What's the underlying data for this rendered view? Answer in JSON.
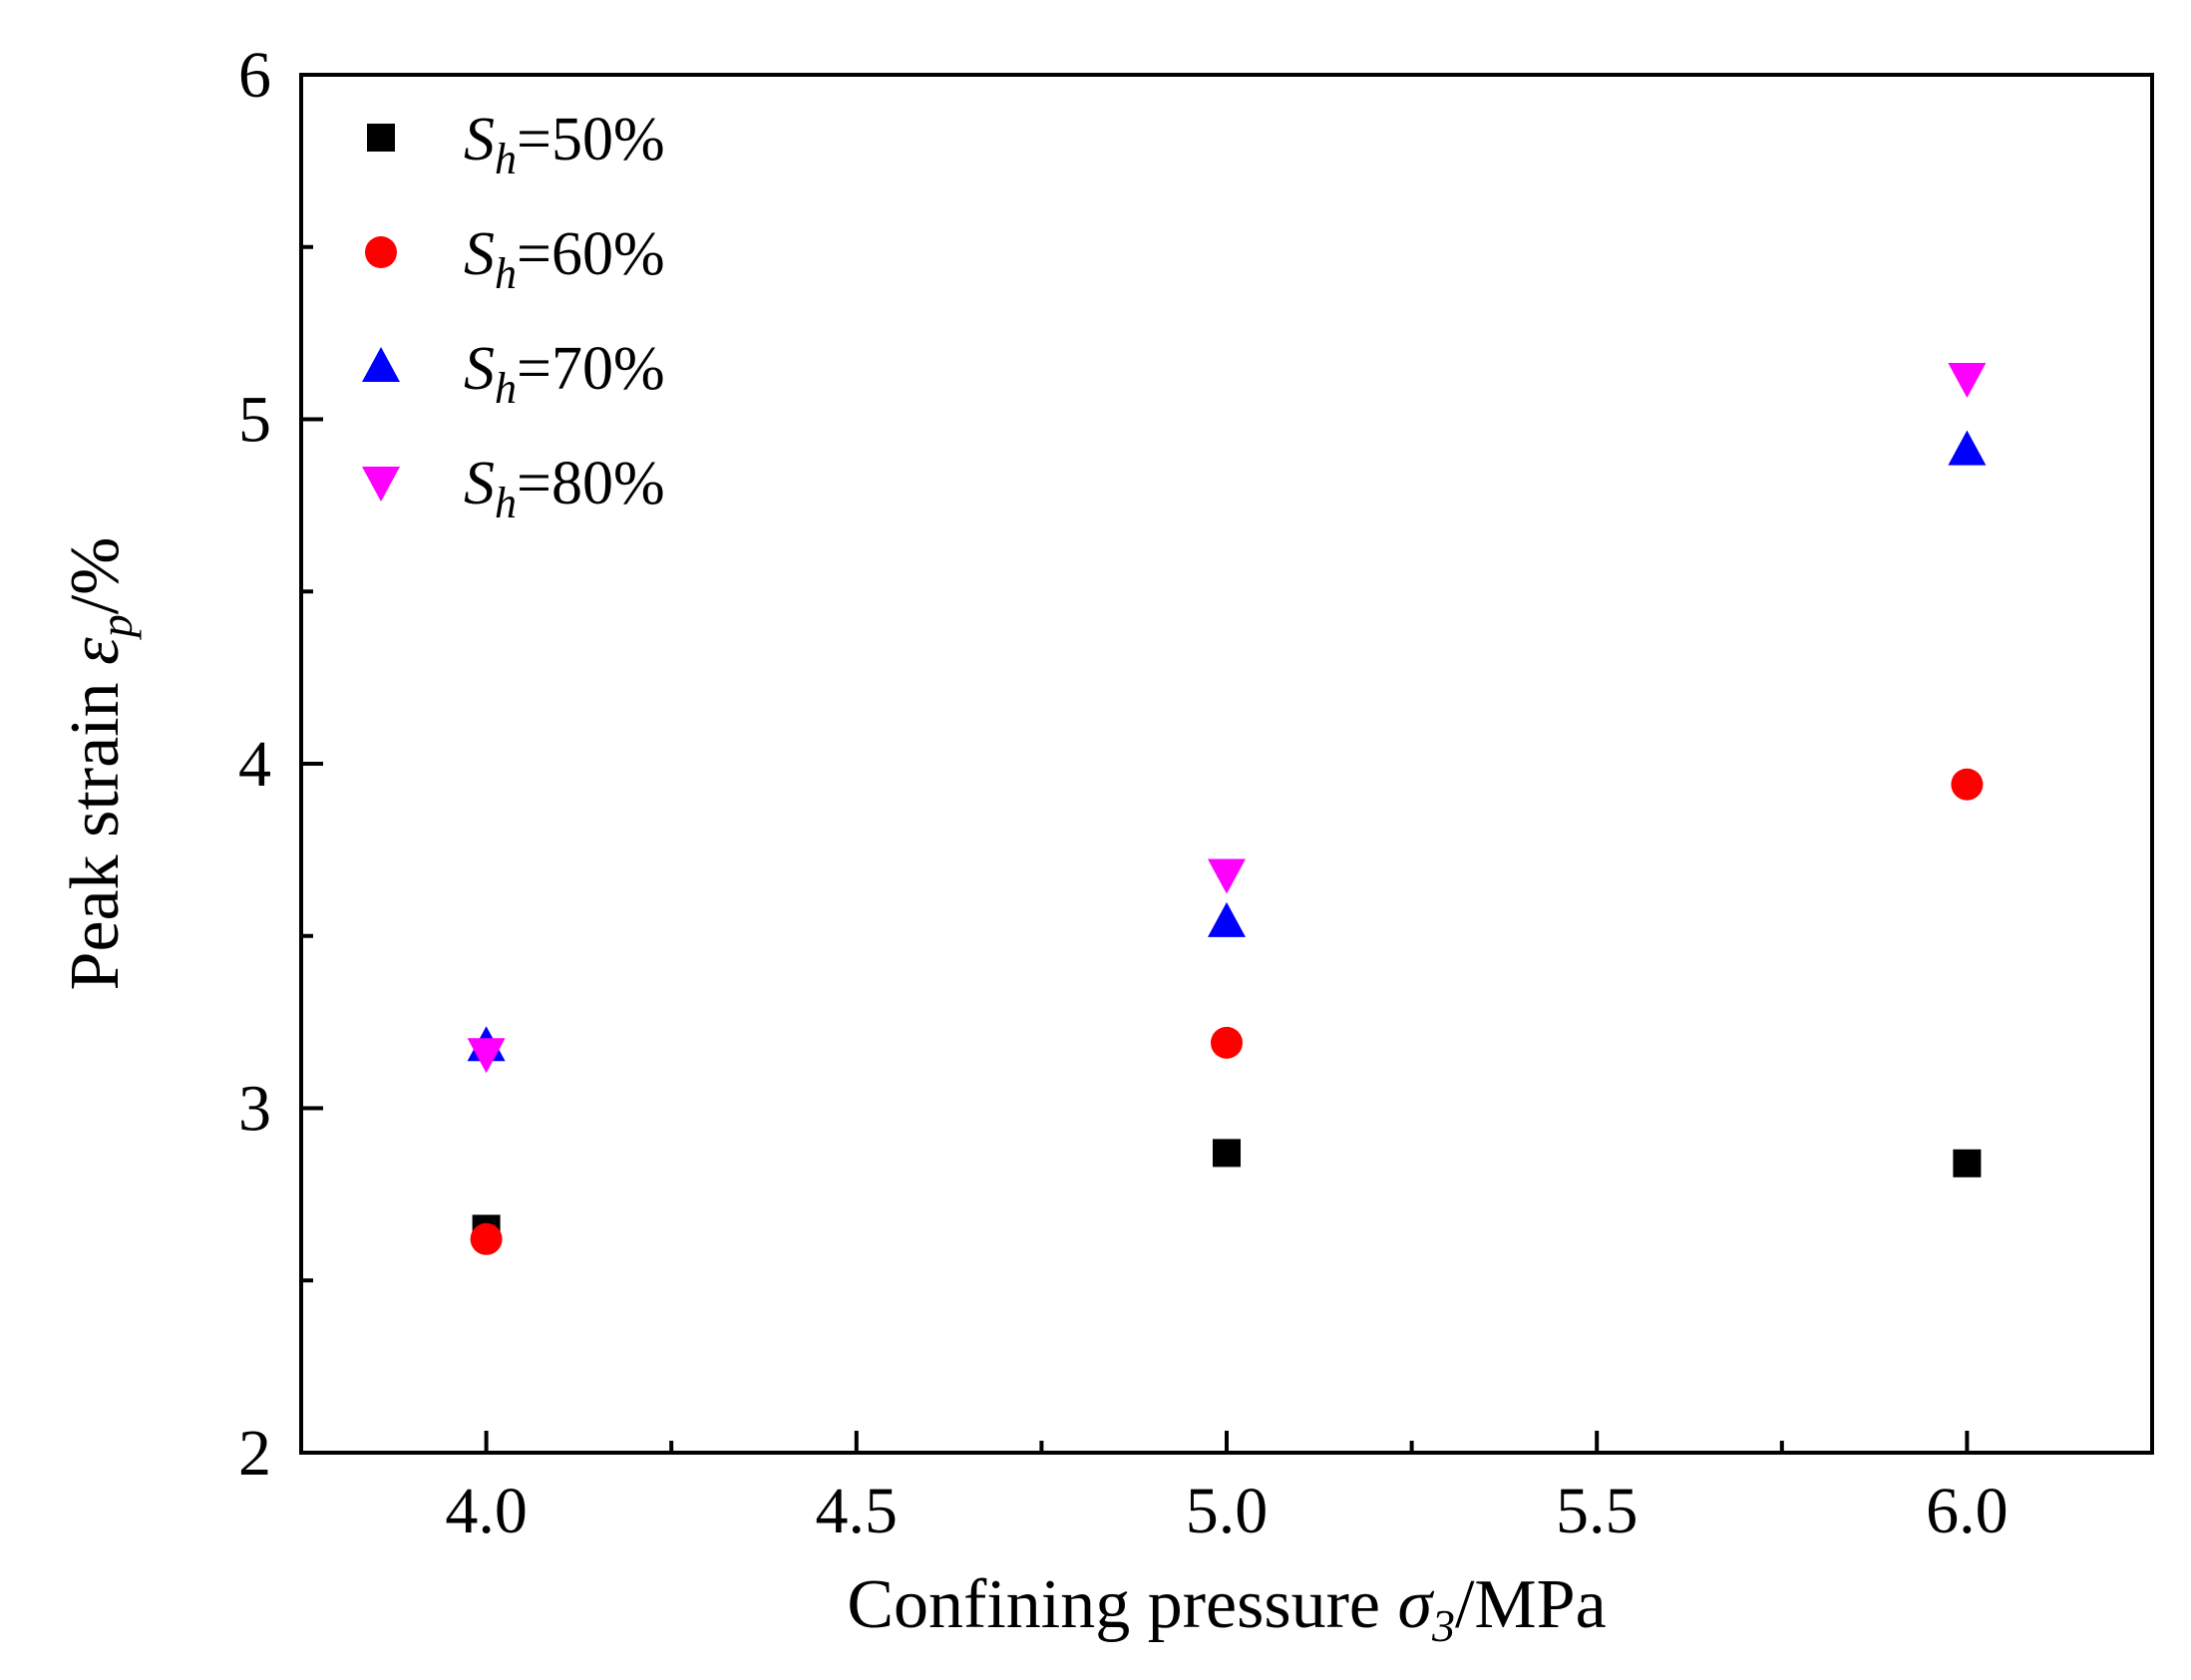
{
  "chart_data": {
    "type": "scatter",
    "title": "",
    "xlabel": {
      "main": "Confining pressure ",
      "symbol": "σ",
      "subscript": "3",
      "unit": "/MPa"
    },
    "ylabel": {
      "main": "Peak strain ",
      "symbol": "ε",
      "subscript": "p",
      "unit": "/%"
    },
    "xlim": [
      3.75,
      6.25
    ],
    "ylim": [
      2,
      6
    ],
    "x_ticks": [
      4.0,
      4.5,
      5.0,
      5.5,
      6.0
    ],
    "x_tick_labels": [
      "4.0",
      "4.5",
      "5.0",
      "5.5",
      "6.0"
    ],
    "y_ticks": [
      2,
      3,
      4,
      5,
      6
    ],
    "y_tick_labels": [
      "2",
      "3",
      "4",
      "5",
      "6"
    ],
    "x_minor_ticks": [
      4.25,
      4.75,
      5.25,
      5.75
    ],
    "y_minor_ticks": [
      2.5,
      3.5,
      4.5,
      5.5
    ],
    "grid": false,
    "legend_position": "top-left",
    "x": [
      4.0,
      5.0,
      6.0
    ],
    "series": [
      {
        "name": "Sh=50%",
        "label_symbol": "S",
        "label_sub": "h",
        "label_rest": "=50%",
        "marker": "square",
        "color": "#000000",
        "values": [
          2.65,
          2.87,
          2.84
        ]
      },
      {
        "name": "Sh=60%",
        "label_symbol": "S",
        "label_sub": "h",
        "label_rest": "=60%",
        "marker": "circle",
        "color": "#ff0000",
        "values": [
          2.62,
          3.19,
          3.94
        ]
      },
      {
        "name": "Sh=70%",
        "label_symbol": "S",
        "label_sub": "h",
        "label_rest": "=70%",
        "marker": "triangle-up",
        "color": "#0000ff",
        "values": [
          3.18,
          3.54,
          4.91
        ]
      },
      {
        "name": "Sh=80%",
        "label_symbol": "S",
        "label_sub": "h",
        "label_rest": "=80%",
        "marker": "triangle-down",
        "color": "#ff00ff",
        "values": [
          3.16,
          3.68,
          5.12
        ]
      }
    ]
  }
}
